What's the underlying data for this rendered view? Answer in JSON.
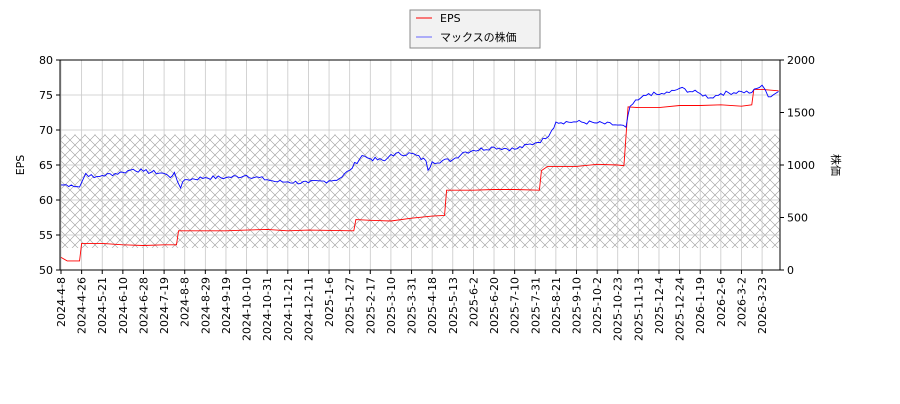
{
  "chart_data": {
    "type": "line",
    "title": "",
    "ylabel_left": "EPS",
    "ylabel_right": "株価",
    "ylim_left": [
      50,
      80
    ],
    "ylim_right": [
      0,
      2000
    ],
    "yticks_left": [
      "50",
      "55",
      "60",
      "65",
      "70",
      "75",
      "80"
    ],
    "yticks_right": [
      "0",
      "500",
      "1000",
      "1500",
      "2000"
    ],
    "grid": true,
    "legend_position": "top-center",
    "x_unit": "tick index",
    "xticks": [
      "2024-4-8",
      "2024-4-26",
      "2024-5-21",
      "2024-6-10",
      "2024-6-28",
      "2024-7-19",
      "2024-8-8",
      "2024-8-29",
      "2024-9-19",
      "2024-10-10",
      "2024-10-31",
      "2024-11-21",
      "2024-12-11",
      "2025-1-6",
      "2025-1-27",
      "2025-2-17",
      "2025-3-10",
      "2025-3-31",
      "2025-4-18",
      "2025-5-13",
      "2025-6-2",
      "2025-6-20",
      "2025-7-10",
      "2025-7-31",
      "2025-8-21",
      "2025-9-10",
      "2025-10-2",
      "2025-10-23",
      "2025-11-13",
      "2025-12-4",
      "2025-12-24",
      "2026-1-19",
      "2026-2-6",
      "2026-3-2",
      "2026-3-23"
    ],
    "shaded_band_right_axis": [
      210,
      1290
    ],
    "series": [
      {
        "name": "EPS",
        "color": "#ff0000",
        "axis": "left",
        "points": [
          [
            0,
            51.8
          ],
          [
            0.3,
            51.3
          ],
          [
            0.9,
            51.3
          ],
          [
            1,
            53.8
          ],
          [
            2,
            53.8
          ],
          [
            3,
            53.6
          ],
          [
            4,
            53.5
          ],
          [
            5,
            53.6
          ],
          [
            5.6,
            53.6
          ],
          [
            5.7,
            55.6
          ],
          [
            8,
            55.6
          ],
          [
            9,
            55.7
          ],
          [
            10,
            55.8
          ],
          [
            11,
            55.6
          ],
          [
            12,
            55.7
          ],
          [
            14.2,
            55.6
          ],
          [
            14.3,
            57.2
          ],
          [
            15,
            57.1
          ],
          [
            16,
            57.0
          ],
          [
            17,
            57.4
          ],
          [
            18,
            57.7
          ],
          [
            18.6,
            57.8
          ],
          [
            18.7,
            61.4
          ],
          [
            20,
            61.4
          ],
          [
            21,
            61.5
          ],
          [
            22,
            61.5
          ],
          [
            23.2,
            61.4
          ],
          [
            23.3,
            64.2
          ],
          [
            23.6,
            64.8
          ],
          [
            25,
            64.8
          ],
          [
            26,
            65.1
          ],
          [
            27,
            65.0
          ],
          [
            27.3,
            64.9
          ],
          [
            27.5,
            73.3
          ],
          [
            28,
            73.2
          ],
          [
            29,
            73.2
          ],
          [
            30,
            73.5
          ],
          [
            31,
            73.5
          ],
          [
            32,
            73.6
          ],
          [
            33,
            73.4
          ],
          [
            33.5,
            73.6
          ],
          [
            33.6,
            75.8
          ],
          [
            34,
            75.8
          ],
          [
            34.8,
            75.6
          ]
        ]
      },
      {
        "name": "マックスの株価",
        "color": "#0000ff",
        "axis": "right",
        "points": [
          [
            0,
            810
          ],
          [
            0.5,
            810
          ],
          [
            0.9,
            790
          ],
          [
            1.2,
            920
          ],
          [
            1.6,
            880
          ],
          [
            2,
            900
          ],
          [
            3,
            930
          ],
          [
            3.5,
            960
          ],
          [
            4,
            940
          ],
          [
            5,
            920
          ],
          [
            5.3,
            880
          ],
          [
            5.5,
            930
          ],
          [
            5.8,
            780
          ],
          [
            6,
            860
          ],
          [
            7,
            880
          ],
          [
            8,
            880
          ],
          [
            9,
            900
          ],
          [
            10,
            860
          ],
          [
            10.5,
            840
          ],
          [
            11,
            840
          ],
          [
            12,
            830
          ],
          [
            13,
            850
          ],
          [
            13.5,
            870
          ],
          [
            14,
            950
          ],
          [
            14.6,
            1090
          ],
          [
            15,
            1060
          ],
          [
            15.7,
            1040
          ],
          [
            16,
            1100
          ],
          [
            17,
            1110
          ],
          [
            17.7,
            1040
          ],
          [
            17.8,
            950
          ],
          [
            18,
            1030
          ],
          [
            19,
            1050
          ],
          [
            19.5,
            1120
          ],
          [
            20,
            1140
          ],
          [
            21,
            1170
          ],
          [
            22,
            1150
          ],
          [
            23,
            1210
          ],
          [
            23.5,
            1250
          ],
          [
            23.8,
            1330
          ],
          [
            24,
            1410
          ],
          [
            25,
            1410
          ],
          [
            26,
            1400
          ],
          [
            27,
            1380
          ],
          [
            27.4,
            1360
          ],
          [
            27.6,
            1560
          ],
          [
            28,
            1620
          ],
          [
            28.5,
            1680
          ],
          [
            29,
            1670
          ],
          [
            29.5,
            1690
          ],
          [
            30,
            1730
          ],
          [
            31,
            1680
          ],
          [
            31.5,
            1640
          ],
          [
            32,
            1680
          ],
          [
            33,
            1700
          ],
          [
            33.5,
            1690
          ],
          [
            34,
            1760
          ],
          [
            34.3,
            1650
          ],
          [
            34.8,
            1700
          ]
        ]
      }
    ]
  },
  "legend": {
    "items": [
      "EPS",
      "マックスの株価"
    ]
  }
}
